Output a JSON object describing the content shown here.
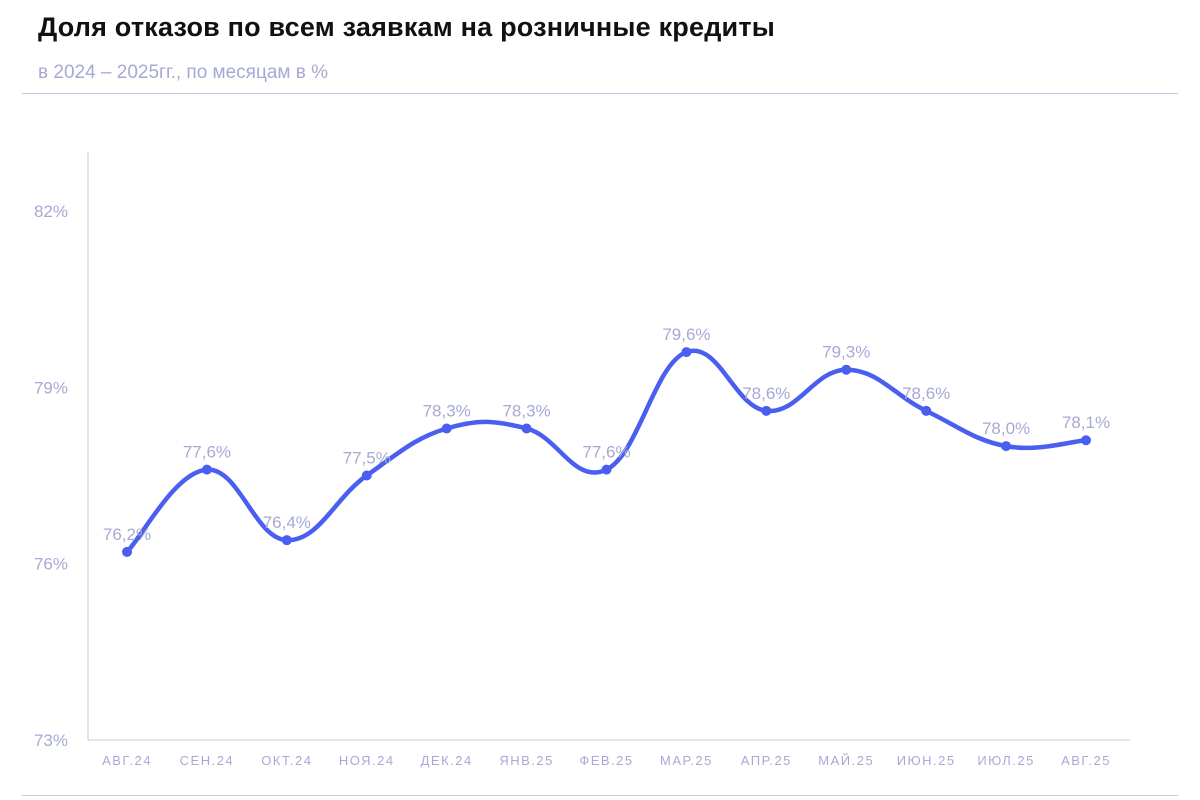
{
  "title": "Доля отказов по всем заявкам на розничные кредиты",
  "subtitle": "в 2024 – 2025гг., по месяцам в %",
  "colors": {
    "line": "#4a5ef0",
    "axis": "#c4c6e2",
    "text_muted": "#a7a9d4"
  },
  "chart_data": {
    "type": "line",
    "title": "Доля отказов по всем заявкам на розничные кредиты",
    "subtitle": "в 2024 – 2025гг., по месяцам в %",
    "xlabel": "",
    "ylabel": "",
    "categories": [
      "АВГ.24",
      "СЕН.24",
      "ОКТ.24",
      "НОЯ.24",
      "ДЕК.24",
      "ЯНВ.25",
      "ФЕВ.25",
      "МАР.25",
      "АПР.25",
      "МАЙ.25",
      "ИЮН.25",
      "ИЮЛ.25",
      "АВГ.25"
    ],
    "series": [
      {
        "values": [
          76.2,
          77.6,
          76.4,
          77.5,
          78.3,
          78.3,
          77.6,
          79.6,
          78.6,
          79.3,
          78.6,
          78.0,
          78.1
        ],
        "labels": [
          "76,2%",
          "77,6%",
          "76,4%",
          "77,5%",
          "78,3%",
          "78,3%",
          "77,6%",
          "79,6%",
          "78,6%",
          "79,3%",
          "78,6%",
          "78,0%",
          "78,1%"
        ]
      }
    ],
    "yticks": [
      73,
      76,
      79,
      82
    ],
    "ytick_labels": [
      "73%",
      "76%",
      "79%",
      "82%"
    ],
    "ylim": [
      73,
      83
    ],
    "grid": false,
    "legend": "none"
  }
}
